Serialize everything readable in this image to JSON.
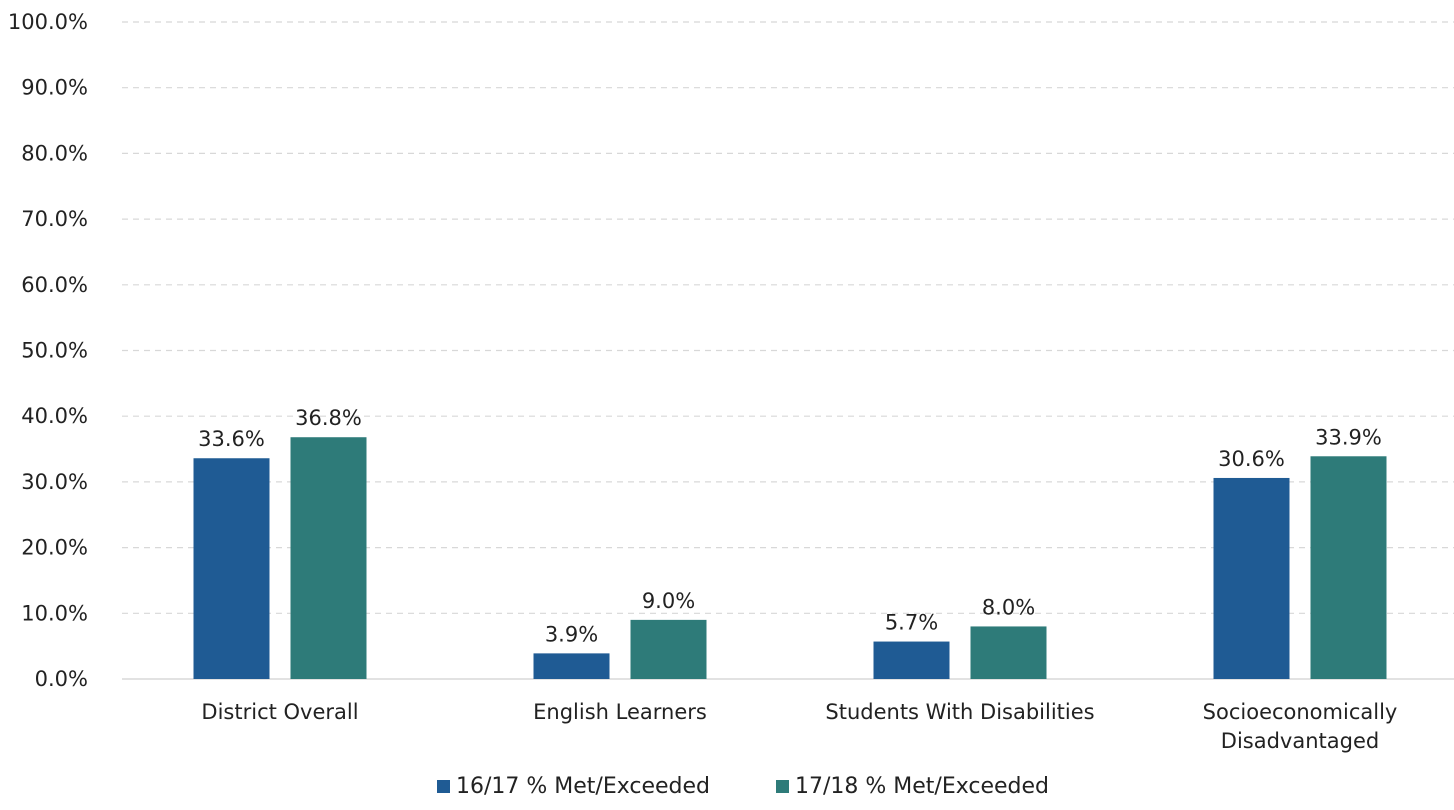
{
  "chart_data": {
    "type": "bar",
    "title": "",
    "xlabel": "",
    "ylabel": "",
    "categories": [
      [
        "District Overall"
      ],
      [
        "English Learners"
      ],
      [
        "Students With Disabilities"
      ],
      [
        "Socioeconomically",
        "Disadvantaged"
      ]
    ],
    "series": [
      {
        "name": "16/17 % Met/Exceeded",
        "color": "#1f5b94",
        "values": [
          33.6,
          3.9,
          5.7,
          30.6
        ],
        "labels": [
          "33.6%",
          "3.9%",
          "5.7%",
          "30.6%"
        ]
      },
      {
        "name": "17/18 % Met/Exceeded",
        "color": "#2e7b79",
        "values": [
          36.8,
          9.0,
          8.0,
          33.9
        ],
        "labels": [
          "36.8%",
          "9.0%",
          "8.0%",
          "33.9%"
        ]
      }
    ],
    "ylim": [
      0,
      100
    ],
    "yticks": [
      0,
      10,
      20,
      30,
      40,
      50,
      60,
      70,
      80,
      90,
      100
    ],
    "ytick_labels": [
      "0.0%",
      "10.0%",
      "20.0%",
      "30.0%",
      "40.0%",
      "50.0%",
      "60.0%",
      "70.0%",
      "80.0%",
      "90.0%",
      "100.0%"
    ],
    "grid": true,
    "legend_position": "bottom-center"
  }
}
